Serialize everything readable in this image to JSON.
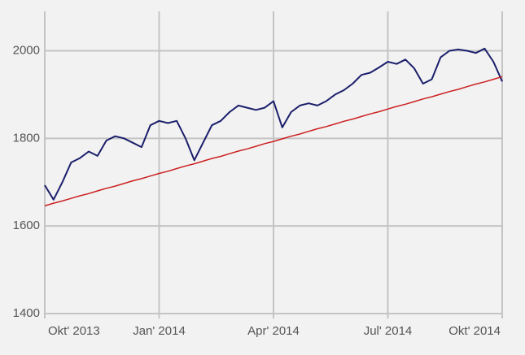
{
  "chart_data": {
    "type": "line",
    "categories": [
      "Okt' 2013",
      null,
      null,
      null,
      null,
      null,
      null,
      null,
      null,
      null,
      null,
      null,
      null,
      "Jan' 2014",
      null,
      null,
      null,
      null,
      null,
      null,
      null,
      null,
      null,
      null,
      null,
      null,
      "Apr' 2014",
      null,
      null,
      null,
      null,
      null,
      null,
      null,
      null,
      null,
      null,
      null,
      null,
      "Jul' 2014",
      null,
      null,
      null,
      null,
      null,
      null,
      null,
      null,
      null,
      null,
      null,
      null,
      "Okt' 2014"
    ],
    "series": [
      {
        "color": "#1b1f6b",
        "values": [
          1693,
          1660,
          1700,
          1745,
          1755,
          1770,
          1760,
          1795,
          1805,
          1800,
          1790,
          1780,
          1830,
          1840,
          1835,
          1840,
          1800,
          1750,
          1790,
          1830,
          1840,
          1860,
          1875,
          1870,
          1865,
          1870,
          1885,
          1825,
          1860,
          1875,
          1880,
          1875,
          1885,
          1900,
          1910,
          1925,
          1945,
          1950,
          1962,
          1975,
          1970,
          1980,
          1960,
          1925,
          1935,
          1985,
          2000,
          2003,
          2000,
          1995,
          2005,
          1975,
          1930
        ]
      },
      {
        "color": "#cc2020",
        "values": [
          1646,
          1652,
          1657,
          1663,
          1669,
          1674,
          1680,
          1686,
          1691,
          1697,
          1703,
          1708,
          1714,
          1720,
          1725,
          1731,
          1737,
          1742,
          1748,
          1754,
          1759,
          1765,
          1771,
          1776,
          1782,
          1788,
          1793,
          1799,
          1805,
          1810,
          1816,
          1822,
          1827,
          1833,
          1839,
          1844,
          1850,
          1856,
          1861,
          1867,
          1873,
          1878,
          1884,
          1890,
          1895,
          1901,
          1907,
          1912,
          1918,
          1924,
          1929,
          1935,
          1941
        ]
      }
    ],
    "ylim": [
      1400,
      2090
    ],
    "yticks": [
      1400,
      1600,
      1800,
      2000
    ],
    "grid": true
  }
}
